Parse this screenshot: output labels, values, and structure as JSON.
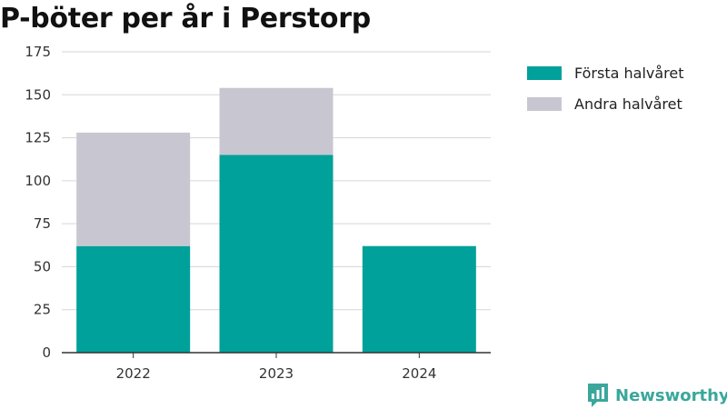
{
  "chart_data": {
    "type": "bar",
    "stacked": true,
    "title": "P-böter per år i Perstorp",
    "xlabel": "",
    "ylabel": "",
    "categories": [
      "2022",
      "2023",
      "2024"
    ],
    "series": [
      {
        "name": "Första halvåret",
        "values": [
          62,
          115,
          62
        ],
        "color": "#00a19a"
      },
      {
        "name": "Andra halvåret",
        "values": [
          66,
          39,
          0
        ],
        "color": "#c8c7d1"
      }
    ],
    "ylim": [
      0,
      175
    ],
    "yticks": [
      0,
      25,
      50,
      75,
      100,
      125,
      150,
      175
    ],
    "grid": true,
    "legend_position": "right"
  },
  "brand": {
    "name": "Newsworthy",
    "color": "#3aa79b",
    "icon": "newsworthy-logo-icon"
  }
}
